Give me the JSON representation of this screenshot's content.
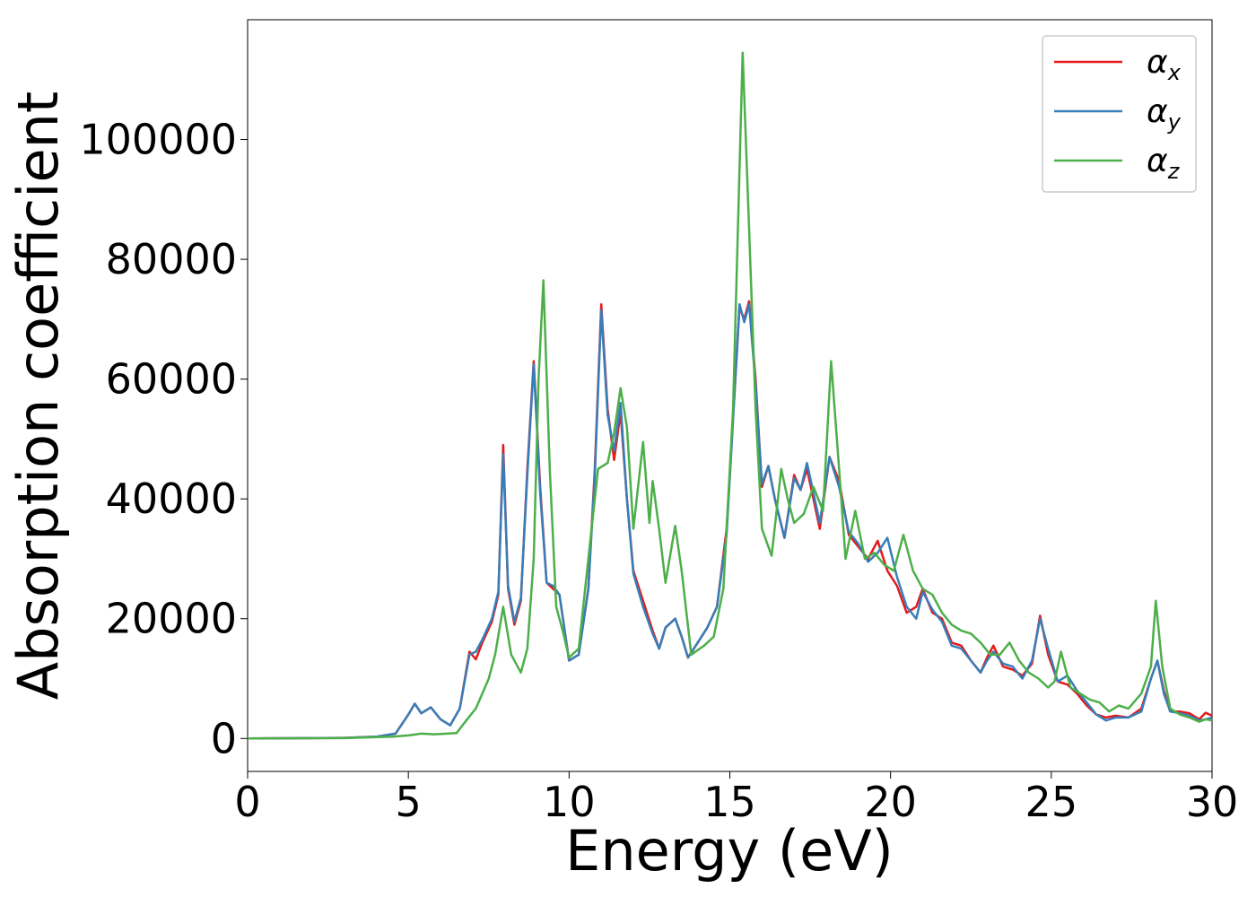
{
  "chart_data": {
    "type": "line",
    "title": "",
    "xlabel": "Energy (eV)",
    "ylabel": "Absorption coefficient",
    "xlim": [
      0,
      30
    ],
    "ylim": [
      -5500,
      120000
    ],
    "xticks": [
      0,
      5,
      10,
      15,
      20,
      25,
      30
    ],
    "yticks": [
      0,
      20000,
      40000,
      60000,
      80000,
      100000
    ],
    "grid": false,
    "legend_position": "top-right",
    "series": [
      {
        "name": "α",
        "subscript": "x",
        "color": "#e41a1c",
        "points": [
          [
            0,
            0
          ],
          [
            3,
            100
          ],
          [
            4,
            300
          ],
          [
            4.6,
            800
          ],
          [
            5,
            4000
          ],
          [
            5.2,
            5800
          ],
          [
            5.4,
            4200
          ],
          [
            5.7,
            5200
          ],
          [
            6,
            3200
          ],
          [
            6.3,
            2200
          ],
          [
            6.6,
            5000
          ],
          [
            6.9,
            14500
          ],
          [
            7.1,
            13200
          ],
          [
            7.3,
            16000
          ],
          [
            7.6,
            19500
          ],
          [
            7.8,
            24000
          ],
          [
            7.95,
            49000
          ],
          [
            8.1,
            25000
          ],
          [
            8.3,
            19000
          ],
          [
            8.5,
            23000
          ],
          [
            8.7,
            45000
          ],
          [
            8.9,
            63000
          ],
          [
            9.1,
            42000
          ],
          [
            9.3,
            26000
          ],
          [
            9.5,
            25000
          ],
          [
            9.7,
            24000
          ],
          [
            10,
            13000
          ],
          [
            10.3,
            14000
          ],
          [
            10.6,
            25000
          ],
          [
            10.8,
            45000
          ],
          [
            11,
            72500
          ],
          [
            11.2,
            55000
          ],
          [
            11.4,
            46500
          ],
          [
            11.6,
            54500
          ],
          [
            11.8,
            40000
          ],
          [
            12,
            28000
          ],
          [
            12.3,
            23000
          ],
          [
            12.6,
            18000
          ],
          [
            12.8,
            15000
          ],
          [
            13,
            18500
          ],
          [
            13.3,
            20000
          ],
          [
            13.5,
            17000
          ],
          [
            13.7,
            13500
          ],
          [
            14,
            16000
          ],
          [
            14.3,
            18500
          ],
          [
            14.6,
            22000
          ],
          [
            14.9,
            35000
          ],
          [
            15.3,
            72000
          ],
          [
            15.45,
            70000
          ],
          [
            15.6,
            73000
          ],
          [
            15.8,
            60000
          ],
          [
            16,
            42000
          ],
          [
            16.2,
            45500
          ],
          [
            16.4,
            40000
          ],
          [
            16.7,
            33500
          ],
          [
            17,
            44000
          ],
          [
            17.2,
            41500
          ],
          [
            17.4,
            45000
          ],
          [
            17.6,
            40000
          ],
          [
            17.8,
            35000
          ],
          [
            18.1,
            47000
          ],
          [
            18.4,
            43000
          ],
          [
            18.7,
            34000
          ],
          [
            19,
            32000
          ],
          [
            19.3,
            30000
          ],
          [
            19.6,
            33000
          ],
          [
            19.9,
            28000
          ],
          [
            20.2,
            25500
          ],
          [
            20.5,
            21000
          ],
          [
            20.8,
            22000
          ],
          [
            21,
            25000
          ],
          [
            21.3,
            21000
          ],
          [
            21.6,
            20000
          ],
          [
            21.9,
            16000
          ],
          [
            22.2,
            15500
          ],
          [
            22.5,
            13000
          ],
          [
            22.8,
            11000
          ],
          [
            23,
            13500
          ],
          [
            23.2,
            15500
          ],
          [
            23.5,
            12000
          ],
          [
            23.8,
            11500
          ],
          [
            24.1,
            10500
          ],
          [
            24.4,
            12500
          ],
          [
            24.65,
            20500
          ],
          [
            24.9,
            14000
          ],
          [
            25.2,
            9500
          ],
          [
            25.5,
            9000
          ],
          [
            25.8,
            7500
          ],
          [
            26.1,
            5500
          ],
          [
            26.4,
            4000
          ],
          [
            26.7,
            3500
          ],
          [
            27,
            3800
          ],
          [
            27.4,
            3500
          ],
          [
            27.8,
            5000
          ],
          [
            28.1,
            10000
          ],
          [
            28.3,
            13000
          ],
          [
            28.5,
            8000
          ],
          [
            28.7,
            4500
          ],
          [
            29,
            4500
          ],
          [
            29.3,
            4200
          ],
          [
            29.6,
            3200
          ],
          [
            29.8,
            4300
          ],
          [
            30,
            3800
          ]
        ]
      },
      {
        "name": "α",
        "subscript": "y",
        "color": "#377eb8",
        "points": [
          [
            0,
            0
          ],
          [
            3,
            100
          ],
          [
            4,
            300
          ],
          [
            4.6,
            800
          ],
          [
            5,
            4000
          ],
          [
            5.2,
            5800
          ],
          [
            5.4,
            4200
          ],
          [
            5.7,
            5200
          ],
          [
            6,
            3200
          ],
          [
            6.3,
            2200
          ],
          [
            6.6,
            5000
          ],
          [
            6.9,
            14000
          ],
          [
            7.1,
            14500
          ],
          [
            7.3,
            16500
          ],
          [
            7.6,
            20000
          ],
          [
            7.8,
            24500
          ],
          [
            7.95,
            47500
          ],
          [
            8.1,
            25500
          ],
          [
            8.3,
            19500
          ],
          [
            8.5,
            23500
          ],
          [
            8.7,
            44000
          ],
          [
            8.9,
            62500
          ],
          [
            9.1,
            41000
          ],
          [
            9.3,
            26000
          ],
          [
            9.5,
            25500
          ],
          [
            9.7,
            24000
          ],
          [
            10,
            13000
          ],
          [
            10.3,
            14000
          ],
          [
            10.6,
            25000
          ],
          [
            10.8,
            44000
          ],
          [
            11,
            71500
          ],
          [
            11.2,
            54000
          ],
          [
            11.4,
            48000
          ],
          [
            11.6,
            56000
          ],
          [
            11.8,
            40000
          ],
          [
            12,
            27500
          ],
          [
            12.3,
            22000
          ],
          [
            12.6,
            17500
          ],
          [
            12.8,
            15000
          ],
          [
            13,
            18500
          ],
          [
            13.3,
            20000
          ],
          [
            13.5,
            17000
          ],
          [
            13.7,
            13500
          ],
          [
            14,
            16000
          ],
          [
            14.3,
            18500
          ],
          [
            14.6,
            22000
          ],
          [
            14.9,
            34000
          ],
          [
            15.3,
            72500
          ],
          [
            15.45,
            69500
          ],
          [
            15.6,
            72500
          ],
          [
            15.8,
            59000
          ],
          [
            16,
            42500
          ],
          [
            16.2,
            45500
          ],
          [
            16.4,
            40000
          ],
          [
            16.7,
            33500
          ],
          [
            17,
            43500
          ],
          [
            17.2,
            41500
          ],
          [
            17.4,
            46000
          ],
          [
            17.6,
            41000
          ],
          [
            17.8,
            36000
          ],
          [
            18.1,
            47000
          ],
          [
            18.4,
            42000
          ],
          [
            18.7,
            34500
          ],
          [
            19,
            32500
          ],
          [
            19.3,
            29500
          ],
          [
            19.6,
            31000
          ],
          [
            19.9,
            33500
          ],
          [
            20.2,
            27000
          ],
          [
            20.5,
            22000
          ],
          [
            20.8,
            20000
          ],
          [
            21,
            24500
          ],
          [
            21.3,
            21500
          ],
          [
            21.6,
            19500
          ],
          [
            21.9,
            15500
          ],
          [
            22.2,
            15000
          ],
          [
            22.5,
            13000
          ],
          [
            22.8,
            11000
          ],
          [
            23,
            13000
          ],
          [
            23.2,
            14500
          ],
          [
            23.5,
            12500
          ],
          [
            23.8,
            12000
          ],
          [
            24.1,
            10000
          ],
          [
            24.4,
            13000
          ],
          [
            24.65,
            20000
          ],
          [
            24.9,
            15000
          ],
          [
            25.2,
            9500
          ],
          [
            25.5,
            10500
          ],
          [
            25.8,
            8000
          ],
          [
            26.1,
            6000
          ],
          [
            26.4,
            4000
          ],
          [
            26.7,
            3000
          ],
          [
            27,
            3500
          ],
          [
            27.4,
            3500
          ],
          [
            27.8,
            4500
          ],
          [
            28.1,
            10000
          ],
          [
            28.3,
            13000
          ],
          [
            28.5,
            7500
          ],
          [
            28.7,
            4500
          ],
          [
            29,
            4200
          ],
          [
            29.3,
            3800
          ],
          [
            29.6,
            3000
          ],
          [
            29.8,
            3200
          ],
          [
            30,
            3500
          ]
        ]
      },
      {
        "name": "α",
        "subscript": "z",
        "color": "#4daf4a",
        "points": [
          [
            0,
            0
          ],
          [
            3,
            50
          ],
          [
            4.5,
            300
          ],
          [
            5,
            500
          ],
          [
            5.4,
            800
          ],
          [
            5.8,
            700
          ],
          [
            6.2,
            800
          ],
          [
            6.5,
            900
          ],
          [
            6.8,
            3000
          ],
          [
            7.1,
            5000
          ],
          [
            7.3,
            7500
          ],
          [
            7.5,
            10000
          ],
          [
            7.7,
            14000
          ],
          [
            7.95,
            22000
          ],
          [
            8.2,
            14000
          ],
          [
            8.5,
            11000
          ],
          [
            8.7,
            15000
          ],
          [
            8.9,
            30000
          ],
          [
            9.05,
            60000
          ],
          [
            9.2,
            76500
          ],
          [
            9.4,
            45000
          ],
          [
            9.6,
            22000
          ],
          [
            9.8,
            18000
          ],
          [
            10,
            13500
          ],
          [
            10.3,
            15000
          ],
          [
            10.6,
            30000
          ],
          [
            10.9,
            45000
          ],
          [
            11.2,
            46000
          ],
          [
            11.4,
            51000
          ],
          [
            11.6,
            58500
          ],
          [
            11.8,
            52000
          ],
          [
            12,
            35000
          ],
          [
            12.3,
            49500
          ],
          [
            12.5,
            36000
          ],
          [
            12.6,
            43000
          ],
          [
            12.8,
            35000
          ],
          [
            13,
            26000
          ],
          [
            13.3,
            35500
          ],
          [
            13.5,
            28000
          ],
          [
            13.8,
            14000
          ],
          [
            14.2,
            15500
          ],
          [
            14.5,
            17000
          ],
          [
            14.8,
            25000
          ],
          [
            15.1,
            55000
          ],
          [
            15.4,
            114500
          ],
          [
            15.6,
            85000
          ],
          [
            15.8,
            55000
          ],
          [
            16,
            35000
          ],
          [
            16.3,
            30500
          ],
          [
            16.6,
            45000
          ],
          [
            16.8,
            40000
          ],
          [
            17,
            36000
          ],
          [
            17.3,
            37500
          ],
          [
            17.6,
            42000
          ],
          [
            17.9,
            38000
          ],
          [
            18.15,
            63000
          ],
          [
            18.4,
            45000
          ],
          [
            18.6,
            30000
          ],
          [
            18.9,
            38000
          ],
          [
            19.2,
            30000
          ],
          [
            19.5,
            31000
          ],
          [
            19.8,
            29000
          ],
          [
            20.1,
            28000
          ],
          [
            20.4,
            34000
          ],
          [
            20.7,
            28000
          ],
          [
            21,
            25000
          ],
          [
            21.3,
            24000
          ],
          [
            21.6,
            21000
          ],
          [
            21.9,
            19000
          ],
          [
            22.2,
            18000
          ],
          [
            22.5,
            17500
          ],
          [
            22.8,
            16000
          ],
          [
            23.1,
            14000
          ],
          [
            23.4,
            14000
          ],
          [
            23.7,
            16000
          ],
          [
            24,
            13000
          ],
          [
            24.3,
            11000
          ],
          [
            24.6,
            10000
          ],
          [
            24.9,
            8500
          ],
          [
            25.1,
            9500
          ],
          [
            25.3,
            14500
          ],
          [
            25.6,
            8500
          ],
          [
            25.9,
            7500
          ],
          [
            26.2,
            6500
          ],
          [
            26.5,
            6000
          ],
          [
            26.8,
            4500
          ],
          [
            27.1,
            5500
          ],
          [
            27.4,
            5000
          ],
          [
            27.8,
            7500
          ],
          [
            28.1,
            12000
          ],
          [
            28.25,
            23000
          ],
          [
            28.45,
            12000
          ],
          [
            28.7,
            5000
          ],
          [
            29,
            4000
          ],
          [
            29.3,
            3500
          ],
          [
            29.6,
            2800
          ],
          [
            29.8,
            3200
          ],
          [
            30,
            3000
          ]
        ]
      }
    ]
  }
}
